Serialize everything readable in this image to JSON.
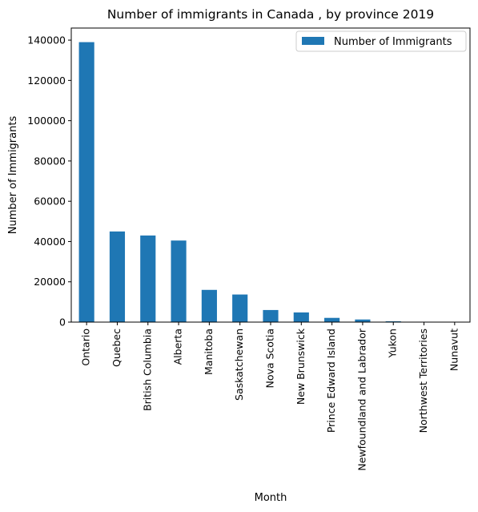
{
  "chart_data": {
    "type": "bar",
    "title": "Number of immigrants in Canada , by province 2019",
    "xlabel": "Month",
    "ylabel": "Number of Immigrants",
    "categories": [
      "Ontario",
      "Quebec",
      "British Columbia",
      "Alberta",
      "Manitoba",
      "Saskatchewan",
      "Nova Scotia",
      "New Brunswick",
      "Prince Edward Island",
      "Newfoundland and Labrador",
      "Yukon",
      "Northwest Territories",
      "Nunavut"
    ],
    "series": [
      {
        "name": "Number of Immigrants",
        "color": "#1f77b4",
        "values": [
          139000,
          45000,
          43000,
          40500,
          16000,
          13700,
          6000,
          4800,
          2100,
          1300,
          400,
          200,
          50
        ]
      }
    ],
    "ylim": [
      0,
      146000
    ],
    "yticks": [
      0,
      20000,
      40000,
      60000,
      80000,
      100000,
      120000,
      140000
    ],
    "legend_position": "top-right",
    "grid": false
  }
}
